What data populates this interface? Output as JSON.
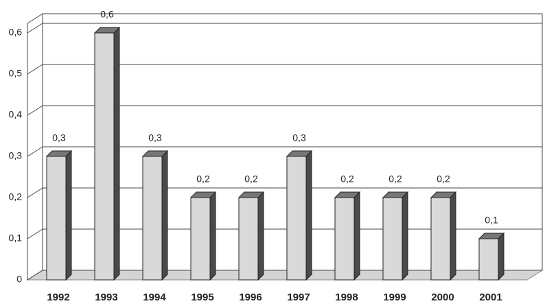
{
  "chart_data": {
    "type": "bar3d",
    "categories": [
      "1992",
      "1993",
      "1994",
      "1995",
      "1996",
      "1997",
      "1998",
      "1999",
      "2000",
      "2001"
    ],
    "values": [
      0.3,
      0.6,
      0.3,
      0.2,
      0.2,
      0.3,
      0.2,
      0.2,
      0.2,
      0.1
    ],
    "value_labels": [
      "0,3",
      "0,6",
      "0,3",
      "0,2",
      "0,2",
      "0,3",
      "0,2",
      "0,2",
      "0,2",
      "0,1"
    ],
    "color": "#d9d9d9",
    "ylim": [
      0,
      0.6
    ],
    "yticks": [
      0,
      {
        "value": 0.1,
        "label": "0,1"
      },
      {
        "value": 0.2,
        "label": "0,2"
      },
      {
        "value": 0.3,
        "label": "0,3"
      },
      {
        "value": 0.4,
        "label": "0,4"
      },
      {
        "value": 0.5,
        "label": "0,5"
      },
      {
        "value": 0.6,
        "label": "0,6"
      }
    ],
    "grid": true
  }
}
